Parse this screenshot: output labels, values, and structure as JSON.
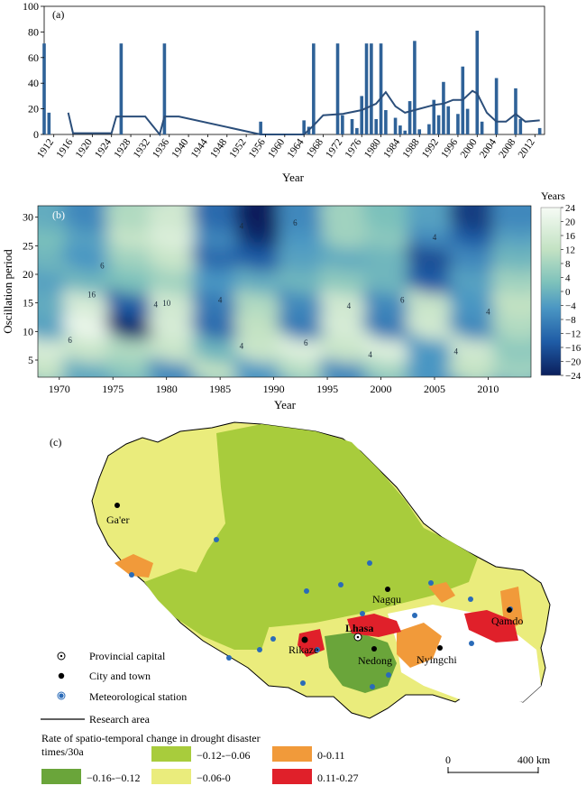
{
  "panel_a": {
    "label": "(a)",
    "xlabel": "Year",
    "yticks": [
      "0",
      "20",
      "40",
      "60",
      "80",
      "100"
    ],
    "xticks": [
      "1912",
      "1916",
      "1920",
      "1924",
      "1928",
      "1932",
      "1936",
      "1940",
      "1944",
      "1948",
      "1952",
      "1956",
      "1960",
      "1964",
      "1968",
      "1972",
      "1976",
      "1980",
      "1984",
      "1988",
      "1992",
      "1996",
      "2000",
      "2004",
      "2008",
      "2012"
    ]
  },
  "panel_b": {
    "label": "(b)",
    "xlabel": "Year",
    "ylabel": "Oscillation period",
    "colorbar_title": "Years",
    "colorbar_ticks": [
      "24",
      "20",
      "16",
      "12",
      "8",
      "4",
      "0",
      "−4",
      "−8",
      "−12",
      "−16",
      "−20",
      "−24"
    ],
    "yticks": [
      "5",
      "10",
      "15",
      "20",
      "25",
      "30"
    ],
    "xticks": [
      "1970",
      "1975",
      "1980",
      "1985",
      "1990",
      "1995",
      "2000",
      "2005",
      "2010"
    ],
    "contour_labels": [
      "6",
      "4",
      "4",
      "6",
      "16",
      "10",
      "4",
      "4",
      "4",
      "6",
      "4",
      "6",
      "4",
      "6",
      "4",
      "4"
    ]
  },
  "panel_c": {
    "label": "(c)",
    "cities": [
      "Ga'er",
      "Nagqu",
      "Lhasa",
      "Rikaze",
      "Nedong",
      "Nyingchi",
      "Qamdo"
    ],
    "legend_markers": [
      "Provincial capital",
      "City and town",
      "Meteorological station",
      "Research area"
    ],
    "legend_title_line1": "Rate of spatio-temporal change in drought disaster",
    "legend_title_line2": "times/30a",
    "legend_classes": [
      {
        "label": "−0.16-−0.12",
        "color": "#6aa53a"
      },
      {
        "label": "−0.12-−0.06",
        "color": "#a8cc3c"
      },
      {
        "label": "0-0.11",
        "color": "#f19a3a"
      },
      {
        "label": "−0.06-0",
        "color": "#eaec7c"
      },
      {
        "label": "0.11-0.27",
        "color": "#e0202a"
      }
    ],
    "scale_ticks": [
      "0",
      "400 km"
    ]
  },
  "chart_data": [
    {
      "type": "bar",
      "title": "",
      "xlabel": "Year",
      "ylabel": "",
      "ylim": [
        0,
        100
      ],
      "xlim": [
        1910,
        2014
      ],
      "series": [
        {
          "kind": "bar",
          "x": [
            1910,
            1911,
            1926,
            1935,
            1955,
            1964,
            1965,
            1966,
            1971,
            1972,
            1974,
            1975,
            1976,
            1977,
            1978,
            1979,
            1980,
            1981,
            1983,
            1984,
            1985,
            1986,
            1987,
            1988,
            1990,
            1991,
            1992,
            1993,
            1994,
            1996,
            1997,
            1998,
            2000,
            2001,
            2004,
            2008,
            2009,
            2013
          ],
          "values": [
            71,
            17,
            71,
            71,
            10,
            11,
            6,
            71,
            71,
            15,
            12,
            5,
            30,
            71,
            71,
            12,
            71,
            19,
            13,
            7,
            3,
            26,
            73,
            4,
            8,
            27,
            15,
            41,
            22,
            16,
            53,
            20,
            81,
            10,
            44,
            36,
            12,
            5
          ]
        },
        {
          "kind": "line",
          "x": [
            1915,
            1916,
            1924,
            1925,
            1926,
            1931,
            1934,
            1935,
            1938,
            1955,
            1964,
            1966,
            1968,
            1972,
            1976,
            1979,
            1981,
            1983,
            1985,
            1987,
            1991,
            1993,
            1995,
            1997,
            1999,
            2000,
            2002,
            2004,
            2006,
            2008,
            2010,
            2013
          ],
          "values": [
            17,
            1,
            1,
            14,
            14,
            14,
            0,
            14,
            14,
            0,
            0,
            7,
            15,
            16,
            19,
            24,
            33,
            22,
            17,
            19,
            23,
            24,
            27,
            27,
            34,
            32,
            17,
            10,
            10,
            16,
            10,
            11
          ]
        }
      ]
    },
    {
      "type": "heatmap",
      "title": "",
      "xlabel": "Year",
      "ylabel": "Oscillation period",
      "colorbar_label": "Years",
      "zlim": [
        -24,
        24
      ],
      "xlim": [
        1968,
        2014
      ],
      "ylim": [
        2,
        32
      ],
      "x": [
        1969,
        1973,
        1977,
        1981,
        1985,
        1989,
        1993,
        1997,
        2001,
        2005,
        2009,
        2013
      ],
      "y": [
        4,
        8,
        12,
        16,
        20,
        24,
        28,
        31
      ],
      "z": [
        [
          8,
          -4,
          2,
          -10,
          8,
          -8,
          6,
          -10,
          4,
          -8,
          8,
          4
        ],
        [
          14,
          10,
          6,
          10,
          -2,
          10,
          16,
          10,
          16,
          -8,
          12,
          2
        ],
        [
          -6,
          20,
          -22,
          14,
          -14,
          8,
          -12,
          14,
          -12,
          12,
          -10,
          6
        ],
        [
          -4,
          14,
          -16,
          12,
          -12,
          6,
          -10,
          12,
          -10,
          10,
          -8,
          8
        ],
        [
          -6,
          -2,
          0,
          4,
          -8,
          -4,
          -2,
          2,
          -2,
          -16,
          -6,
          4
        ],
        [
          -2,
          -8,
          4,
          10,
          -14,
          -16,
          -6,
          -4,
          -2,
          -18,
          -10,
          -2
        ],
        [
          0,
          -6,
          10,
          16,
          -10,
          -22,
          -8,
          4,
          2,
          -10,
          -16,
          -6
        ],
        [
          -4,
          -10,
          6,
          12,
          -14,
          -24,
          -10,
          4,
          0,
          -6,
          -20,
          -10
        ]
      ]
    }
  ]
}
